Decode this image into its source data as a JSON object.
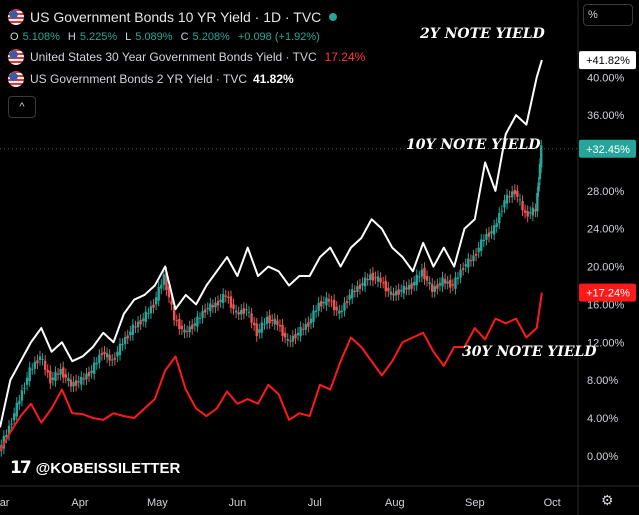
{
  "legend": {
    "main_title": "US Government Bonds 10 YR Yield · 1D · TVC",
    "ohlc": {
      "o_label": "O",
      "o": "5.108%",
      "h_label": "H",
      "h": "5.225%",
      "l_label": "L",
      "l": "5.089%",
      "c_label": "C",
      "c": "5.208%",
      "change": "+0.098 (+1.92%)"
    },
    "series_30y": "United States 30 Year Government Bonds Yield · TVC",
    "series_30y_value": "17.24%",
    "series_2y": "US Government Bonds 2 YR Yield · TVC",
    "series_2y_value": "41.82%",
    "collapse": "^"
  },
  "scale_button": "%",
  "annotations": {
    "y2": "2Y NOTE YIELD",
    "y10": "10Y NOTE YIELD",
    "y30": "30Y NOTE YIELD"
  },
  "brand": {
    "logo": "17",
    "handle": "@KOBEISSILETTER"
  },
  "settings_icon": "gear-icon",
  "colors": {
    "background": "#000000",
    "up": "#26a69a",
    "down": "#ef5350",
    "y2_line": "#ffffff",
    "y30_line": "#ff1a1a",
    "badge_10y": "#26a69a",
    "badge_30y": "#ff1a1a"
  },
  "chart_data": {
    "type": "line",
    "y_axis_format": "percent",
    "ylim": [
      -1.5,
      45
    ],
    "y_ticks": [
      "0.00%",
      "4.00%",
      "8.00%",
      "12.00%",
      "16.00%",
      "20.00%",
      "24.00%",
      "28.00%",
      "32.00%",
      "36.00%",
      "40.00%"
    ],
    "y_tick_values": [
      0,
      4,
      8,
      12,
      16,
      20,
      24,
      28,
      32,
      36,
      40
    ],
    "x_ticks": [
      "Mar",
      "Apr",
      "May",
      "Jun",
      "Jul",
      "Aug",
      "Sep",
      "Oct"
    ],
    "x_tick_days": [
      0,
      31,
      61,
      92,
      122,
      153,
      184,
      214
    ],
    "xlim": [
      0,
      224
    ],
    "last_values": {
      "y10": "+32.45%",
      "y2": "+41.82%",
      "y30": "+17.24%"
    },
    "series": [
      {
        "name": "United States 30 Year Government Bonds Yield · TVC",
        "color": "#ff1a1a",
        "x": [
          0,
          4,
          8,
          12,
          16,
          20,
          24,
          28,
          32,
          36,
          40,
          44,
          48,
          52,
          56,
          60,
          64,
          68,
          72,
          76,
          80,
          84,
          88,
          92,
          96,
          100,
          104,
          108,
          112,
          116,
          120,
          124,
          128,
          132,
          136,
          140,
          144,
          148,
          152,
          156,
          160,
          164,
          168,
          172,
          176,
          180,
          184,
          188,
          192,
          196,
          200,
          204,
          208,
          210
        ],
        "y": [
          0.5,
          2.5,
          4.2,
          5.5,
          3.5,
          5,
          7,
          4.5,
          4.4,
          4,
          3.8,
          4.5,
          4.2,
          4,
          5,
          6,
          9,
          10.5,
          7,
          5,
          4.2,
          5,
          6.8,
          5.5,
          6,
          5.5,
          7.5,
          6.5,
          3.8,
          4.5,
          4.2,
          7.5,
          7,
          10,
          12.5,
          11.5,
          10,
          8.5,
          10,
          12,
          12.5,
          13,
          11,
          9.5,
          11.5,
          11.5,
          13.5,
          12.3,
          14.5,
          14,
          14.5,
          12.5,
          13.5,
          17.24
        ]
      },
      {
        "name": "US Government Bonds 2 YR Yield · TVC",
        "color": "#ffffff",
        "x": [
          0,
          4,
          8,
          12,
          16,
          20,
          24,
          28,
          32,
          36,
          40,
          44,
          48,
          52,
          56,
          60,
          64,
          68,
          72,
          76,
          80,
          84,
          88,
          92,
          96,
          100,
          104,
          108,
          112,
          116,
          120,
          124,
          128,
          132,
          136,
          140,
          144,
          148,
          152,
          156,
          160,
          164,
          168,
          172,
          176,
          180,
          184,
          188,
          192,
          196,
          200,
          204,
          208,
          210
        ],
        "y": [
          3,
          8,
          10,
          12,
          13.5,
          11,
          12,
          10,
          10.5,
          11.5,
          13,
          12,
          15,
          16.5,
          17,
          18,
          20,
          15.5,
          17,
          16,
          18,
          19.5,
          21,
          19,
          22,
          19,
          20,
          19.5,
          18,
          19,
          19,
          21,
          22,
          20,
          22,
          23,
          25,
          24,
          22,
          21,
          19.5,
          22.5,
          20,
          22,
          20,
          24,
          25,
          31,
          28,
          34,
          36,
          35,
          40,
          41.82
        ]
      },
      {
        "name": "US Government Bonds 10 YR Yield",
        "color": "#26a69a",
        "candles": true,
        "x": [
          0,
          4,
          8,
          12,
          16,
          20,
          24,
          28,
          32,
          36,
          40,
          44,
          48,
          52,
          56,
          60,
          64,
          68,
          72,
          76,
          80,
          84,
          88,
          92,
          96,
          100,
          104,
          108,
          112,
          116,
          120,
          124,
          128,
          132,
          136,
          140,
          144,
          148,
          152,
          156,
          160,
          164,
          168,
          172,
          176,
          180,
          184,
          188,
          192,
          196,
          200,
          204,
          208,
          210
        ],
        "y": [
          0.5,
          3,
          6,
          9,
          10.5,
          8,
          9,
          7.5,
          8,
          9,
          11,
          10,
          12,
          13.5,
          14.5,
          16,
          19,
          14.5,
          13,
          14,
          15.5,
          16,
          17,
          15,
          15.5,
          13,
          14.5,
          14,
          12,
          13,
          14,
          16,
          16.5,
          15,
          17,
          18,
          19,
          18.5,
          17,
          17.5,
          18,
          19.5,
          17.5,
          18.5,
          18,
          20,
          21,
          23,
          24,
          27,
          28,
          25.5,
          26,
          32.45
        ]
      }
    ]
  }
}
